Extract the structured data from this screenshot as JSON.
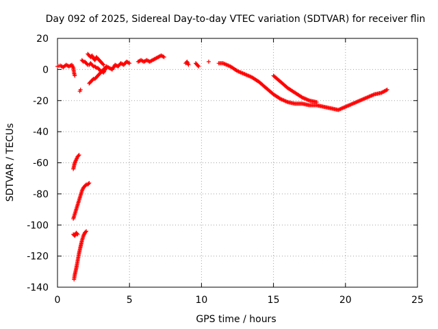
{
  "chart_data": {
    "type": "scatter",
    "title": "Day 092 of 2025, Sidereal Day-to-day VTEC variation (SDTVAR) for receiver flin",
    "xlabel": "GPS time / hours",
    "ylabel": "SDTVAR / TECUs",
    "xlim": [
      0,
      25
    ],
    "ylim": [
      -140,
      20
    ],
    "x_ticks": [
      0,
      5,
      10,
      15,
      20,
      25
    ],
    "y_ticks": [
      -140,
      -120,
      -100,
      -80,
      -60,
      -40,
      -20,
      0,
      20
    ],
    "x_tick_labels": [
      "0",
      "5",
      "10",
      "15",
      "20",
      "25"
    ],
    "y_tick_labels": [
      "-140",
      "-120",
      "-100",
      "-80",
      "-60",
      "-40",
      "-20",
      "0",
      "20"
    ],
    "grid": true,
    "marker": "plus",
    "color": "#ff0000",
    "segments": [
      {
        "x": [
          0.0,
          0.2,
          0.4,
          0.6,
          0.8,
          1.0,
          1.1,
          1.15,
          1.2
        ],
        "y": [
          2,
          2.5,
          1.5,
          3,
          2,
          3,
          1,
          -2,
          -4
        ]
      },
      {
        "x": [
          1.55,
          1.6
        ],
        "y": [
          -14,
          -13
        ]
      },
      {
        "x": [
          1.1,
          1.15,
          1.2,
          1.3,
          1.4,
          1.5
        ],
        "y": [
          -64,
          -62,
          -60,
          -58,
          -56,
          -55
        ]
      },
      {
        "x": [
          1.1,
          1.2,
          1.3,
          1.4,
          1.5,
          1.6,
          1.7,
          1.8,
          1.9,
          2.0,
          2.1,
          2.2
        ],
        "y": [
          -96,
          -93,
          -90,
          -87,
          -84,
          -81,
          -78,
          -76,
          -75,
          -74,
          -74,
          -73
        ]
      },
      {
        "x": [
          1.1,
          1.2,
          1.3,
          1.4
        ],
        "y": [
          -106,
          -107,
          -105,
          -106
        ]
      },
      {
        "x": [
          1.15,
          1.2,
          1.3,
          1.4,
          1.5,
          1.6,
          1.7,
          1.8,
          1.9,
          2.0
        ],
        "y": [
          -135,
          -132,
          -128,
          -123,
          -118,
          -114,
          -110,
          -107,
          -105,
          -104
        ]
      },
      {
        "x": [
          1.7,
          1.8,
          1.9,
          2.0,
          2.1,
          2.2,
          2.3,
          2.4,
          2.5,
          2.6,
          2.7,
          2.8,
          2.9,
          3.0,
          3.2,
          3.4,
          3.6,
          3.8,
          4.0,
          4.2,
          4.4,
          4.6,
          4.8,
          5.0
        ],
        "y": [
          6,
          5,
          5,
          4,
          3,
          3,
          4,
          3,
          2,
          2,
          1,
          1,
          0,
          -1,
          -2,
          2,
          1,
          0,
          3,
          2,
          4,
          3,
          5,
          4
        ]
      },
      {
        "x": [
          2.1,
          2.2,
          2.3,
          2.4,
          2.5,
          2.6,
          2.7,
          2.8,
          2.9,
          3.0,
          3.1,
          3.2
        ],
        "y": [
          10,
          9,
          8,
          9,
          7,
          6,
          8,
          7,
          6,
          5,
          4,
          3
        ]
      },
      {
        "x": [
          2.2,
          2.3,
          2.4,
          2.5,
          2.6,
          2.7,
          2.8,
          2.9,
          3.0,
          3.1,
          3.2,
          3.3,
          3.4
        ],
        "y": [
          -9,
          -8,
          -7,
          -6,
          -6,
          -5,
          -4,
          -3,
          -2,
          -1,
          0,
          1,
          1
        ]
      },
      {
        "x": [
          5.6,
          5.8,
          6.0,
          6.2,
          6.4,
          6.6,
          6.8,
          7.0,
          7.2,
          7.4
        ],
        "y": [
          5,
          6,
          5,
          6,
          5,
          6,
          7,
          8,
          9,
          8
        ]
      },
      {
        "x": [
          8.9,
          9.0,
          9.1
        ],
        "y": [
          4,
          5,
          3
        ]
      },
      {
        "x": [
          9.6,
          9.7,
          9.8
        ],
        "y": [
          4,
          3,
          2
        ]
      },
      {
        "x": [
          10.5
        ],
        "y": [
          5
        ]
      },
      {
        "x": [
          11.2,
          11.5,
          12.0,
          12.5,
          13.0,
          13.5,
          14.0,
          14.5,
          15.0,
          15.5,
          16.0,
          16.5,
          17.0,
          17.5,
          18.0,
          18.5,
          19.0,
          19.5,
          20.0,
          20.5,
          21.0,
          21.5,
          22.0,
          22.5,
          22.9
        ],
        "y": [
          4,
          4,
          2,
          -1,
          -3,
          -5,
          -8,
          -12,
          -16,
          -19,
          -21,
          -22,
          -22,
          -23,
          -23,
          -24,
          -25,
          -26,
          -24,
          -22,
          -20,
          -18,
          -16,
          -15,
          -13
        ]
      },
      {
        "x": [
          15.0,
          15.5,
          16.0,
          16.5,
          17.0,
          17.5,
          18.0
        ],
        "y": [
          -4,
          -8,
          -12,
          -15,
          -18,
          -20,
          -21
        ]
      }
    ]
  }
}
